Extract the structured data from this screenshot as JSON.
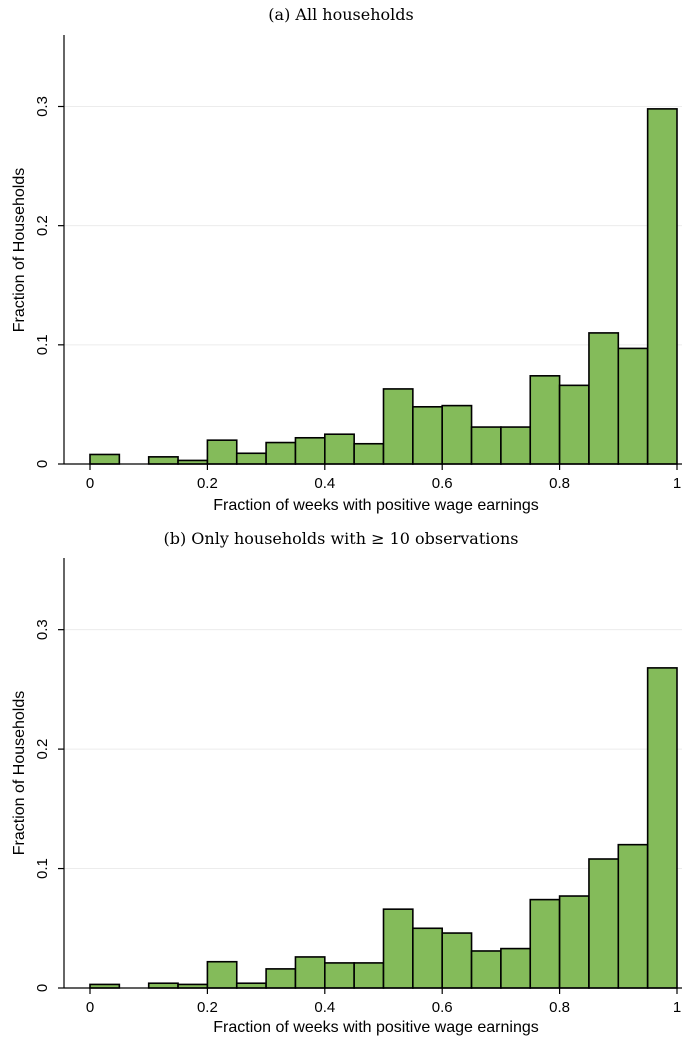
{
  "chart_data": [
    {
      "type": "bar",
      "title": "(a) All households",
      "xlabel": "Fraction of weeks with positive wage earnings",
      "ylabel": "Fraction of Households",
      "xlim": [
        0,
        1
      ],
      "ylim": [
        0,
        0.36
      ],
      "xticks": [
        "0",
        "0.2",
        "0.4",
        "0.6",
        "0.8",
        "1"
      ],
      "yticks": [
        "0",
        "0.1",
        "0.2",
        "0.3"
      ],
      "grid": true,
      "bin_width": 0.05,
      "bin_starts": [
        0.0,
        0.1,
        0.15,
        0.2,
        0.25,
        0.3,
        0.35,
        0.4,
        0.45,
        0.5,
        0.55,
        0.6,
        0.65,
        0.7,
        0.75,
        0.8,
        0.85,
        0.9,
        0.95
      ],
      "values": [
        0.008,
        0.006,
        0.003,
        0.02,
        0.009,
        0.018,
        0.022,
        0.025,
        0.017,
        0.063,
        0.048,
        0.049,
        0.031,
        0.031,
        0.074,
        0.066,
        0.11,
        0.097,
        0.298
      ]
    },
    {
      "type": "bar",
      "title": "(b) Only households with ≥ 10 observations",
      "xlabel": "Fraction of weeks with positive wage earnings",
      "ylabel": "Fraction of Households",
      "xlim": [
        0,
        1
      ],
      "ylim": [
        0,
        0.36
      ],
      "xticks": [
        "0",
        "0.2",
        "0.4",
        "0.6",
        "0.8",
        "1"
      ],
      "yticks": [
        "0",
        "0.1",
        "0.2",
        "0.3"
      ],
      "grid": true,
      "bin_width": 0.05,
      "bin_starts": [
        0.0,
        0.1,
        0.15,
        0.2,
        0.25,
        0.3,
        0.35,
        0.4,
        0.45,
        0.5,
        0.55,
        0.6,
        0.65,
        0.7,
        0.75,
        0.8,
        0.85,
        0.9,
        0.95
      ],
      "values": [
        0.003,
        0.004,
        0.003,
        0.022,
        0.004,
        0.016,
        0.026,
        0.021,
        0.021,
        0.066,
        0.05,
        0.046,
        0.031,
        0.033,
        0.074,
        0.077,
        0.108,
        0.12,
        0.268
      ]
    }
  ]
}
